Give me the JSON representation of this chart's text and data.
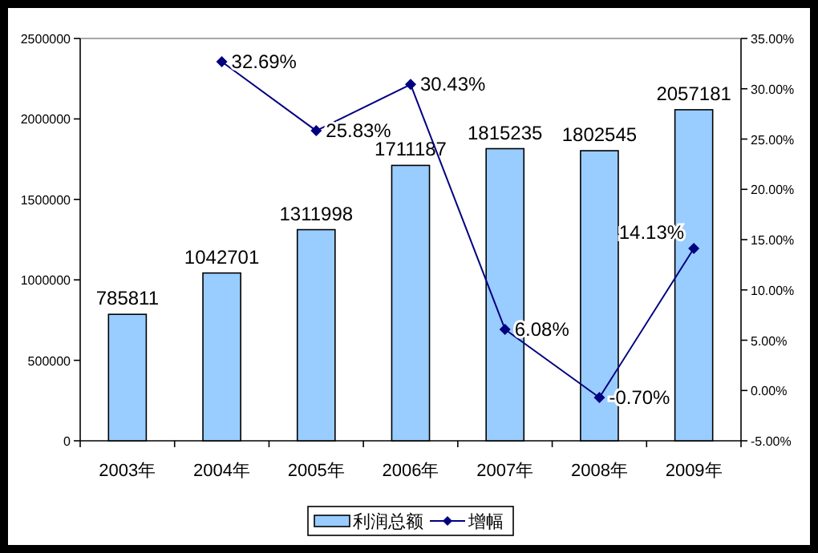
{
  "chart_data": {
    "type": "bar",
    "categories": [
      "2003年",
      "2004年",
      "2005年",
      "2006年",
      "2007年",
      "2008年",
      "2009年"
    ],
    "series": [
      {
        "name": "利润总额",
        "color": "#99ccff",
        "values": [
          785811,
          1042701,
          1311998,
          1711187,
          1815235,
          1802545,
          2057181
        ]
      },
      {
        "name": "增幅",
        "type": "line",
        "axis": "y2",
        "color": "#000080",
        "marker": "diamond",
        "values": [
          null,
          32.69,
          25.83,
          30.43,
          6.08,
          -0.7,
          14.13
        ],
        "value_labels": [
          null,
          "32.69%",
          "25.83%",
          "30.43%",
          "6.08%",
          "-0.70%",
          "14.13%"
        ]
      }
    ],
    "data_labels": true,
    "ylim": [
      0,
      2500000
    ],
    "yticks": [
      0,
      500000,
      1000000,
      1500000,
      2000000,
      2500000
    ],
    "y2lim": [
      -5,
      35
    ],
    "y2ticks": [
      {
        "value": -5,
        "label": "-5.00%"
      },
      {
        "value": 0,
        "label": "0.00%"
      },
      {
        "value": 5,
        "label": "5.00%"
      },
      {
        "value": 10,
        "label": "10.00%"
      },
      {
        "value": 15,
        "label": "15.00%"
      },
      {
        "value": 20,
        "label": "20.00%"
      },
      {
        "value": 25,
        "label": "25.00%"
      },
      {
        "value": 30,
        "label": "30.00%"
      },
      {
        "value": 35,
        "label": "35.00%"
      }
    ],
    "grid": false,
    "legend": "bottom"
  }
}
